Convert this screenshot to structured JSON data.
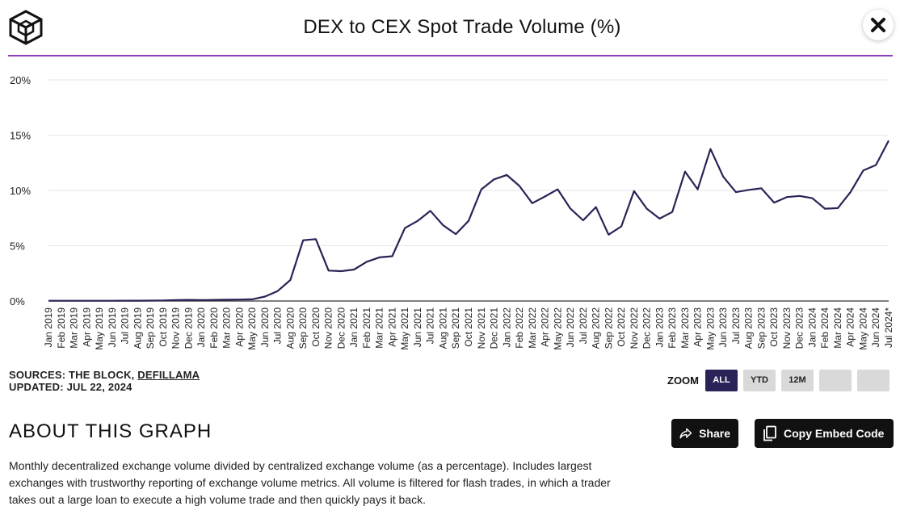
{
  "header": {
    "title": "DEX to CEX Spot Trade Volume (%)",
    "logo_icon": "the-block-cube-icon",
    "close_icon": "close-icon",
    "divider_color": "#8e3fb8"
  },
  "chart_data": {
    "type": "line",
    "title": "DEX to CEX Spot Trade Volume (%)",
    "xlabel": "",
    "ylabel": "",
    "ylim": [
      0,
      20
    ],
    "yticks": [
      "0%",
      "5%",
      "10%",
      "15%",
      "20%"
    ],
    "grid": true,
    "line_color": "#2a2357",
    "categories": [
      "Jan 2019",
      "Feb 2019",
      "Mar 2019",
      "Apr 2019",
      "May 2019",
      "Jun 2019",
      "Jul 2019",
      "Aug 2019",
      "Sep 2019",
      "Oct 2019",
      "Nov 2019",
      "Dec 2019",
      "Jan 2020",
      "Feb 2020",
      "Mar 2020",
      "Apr 2020",
      "May 2020",
      "Jun 2020",
      "Jul 2020",
      "Aug 2020",
      "Sep 2020",
      "Oct 2020",
      "Nov 2020",
      "Dec 2020",
      "Jan 2021",
      "Feb 2021",
      "Mar 2021",
      "Apr 2021",
      "May 2021",
      "Jun 2021",
      "Jul 2021",
      "Aug 2021",
      "Sep 2021",
      "Oct 2021",
      "Nov 2021",
      "Dec 2021",
      "Jan 2022",
      "Feb 2022",
      "Mar 2022",
      "Apr 2022",
      "May 2022",
      "Jun 2022",
      "Jul 2022",
      "Aug 2022",
      "Sep 2022",
      "Oct 2022",
      "Nov 2022",
      "Dec 2022",
      "Jan 2023",
      "Feb 2023",
      "Mar 2023",
      "Apr 2023",
      "May 2023",
      "Jun 2023",
      "Jul 2023",
      "Aug 2023",
      "Sep 2023",
      "Oct 2023",
      "Nov 2023",
      "Dec 2023",
      "Jan 2024",
      "Feb 2024",
      "Mar 2024",
      "Apr 2024",
      "May 2024",
      "Jun 2024",
      "Jul 2024*"
    ],
    "series": [
      {
        "values": [
          0.02,
          0.02,
          0.02,
          0.02,
          0.02,
          0.02,
          0.03,
          0.03,
          0.04,
          0.05,
          0.08,
          0.1,
          0.08,
          0.1,
          0.12,
          0.13,
          0.15,
          0.4,
          0.9,
          1.9,
          5.5,
          5.6,
          2.75,
          2.7,
          2.85,
          3.55,
          3.95,
          4.05,
          6.6,
          7.25,
          8.15,
          6.85,
          6.05,
          7.25,
          10.1,
          11.0,
          11.4,
          10.4,
          8.85,
          9.45,
          10.1,
          8.35,
          7.3,
          8.5,
          6.0,
          6.75,
          9.95,
          8.35,
          7.45,
          8.05,
          11.7,
          10.1,
          13.75,
          11.25,
          9.85,
          10.05,
          10.2,
          8.9,
          9.4,
          9.5,
          9.3,
          8.35,
          8.4,
          9.85,
          11.8,
          12.3,
          14.5
        ]
      }
    ]
  },
  "meta": {
    "sources_prefix": "SOURCES: THE BLOCK, ",
    "sources_link": "DEFILLAMA",
    "updated": "UPDATED: JUL 22, 2024"
  },
  "zoom": {
    "label": "ZOOM",
    "all": "ALL",
    "ytd": "YTD",
    "m12": "12M"
  },
  "about": {
    "title": "ABOUT THIS GRAPH",
    "share_label": "Share",
    "share_icon": "share-arrow-icon",
    "embed_label": "Copy Embed Code",
    "embed_icon": "copy-icon",
    "description": "Monthly decentralized exchange volume divided by centralized exchange volume (as a percentage). Includes largest exchanges with trustworthy reporting of exchange volume metrics. All volume is filtered for flash trades, in which a trader takes out a large loan to execute a high volume trade and then quickly pays it back."
  }
}
